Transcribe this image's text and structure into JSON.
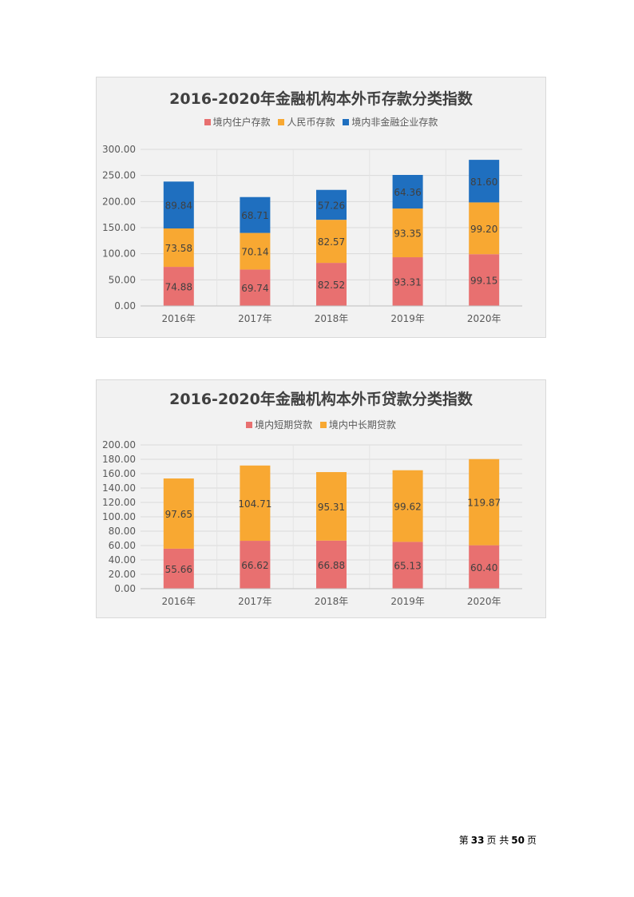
{
  "chart_data": [
    {
      "type": "bar",
      "stacked": true,
      "title": "2016-2020年金融机构本外币存款分类指数",
      "categories": [
        "2016年",
        "2017年",
        "2018年",
        "2019年",
        "2020年"
      ],
      "series": [
        {
          "name": "境内住户存款",
          "color": "#e87070",
          "values": [
            74.88,
            69.74,
            82.52,
            93.31,
            99.15
          ],
          "labels": [
            "74.88",
            "69.74",
            "82.52",
            "93.31",
            "99.15"
          ]
        },
        {
          "name": "人民币存款",
          "color": "#f8a832",
          "values": [
            73.58,
            70.14,
            82.57,
            93.35,
            99.2
          ],
          "labels": [
            "73.58",
            "70.14",
            "82.57",
            "93.35",
            "99.20"
          ]
        },
        {
          "name": "境内非金融企业存款",
          "color": "#1f6fbf",
          "values": [
            89.84,
            68.71,
            57.26,
            64.36,
            81.6
          ],
          "labels": [
            "89.84",
            "68.71",
            "57.26",
            "64.36",
            "81.60"
          ]
        }
      ],
      "ylim": [
        0,
        300
      ],
      "yticks": [
        "0.00",
        "50.00",
        "100.00",
        "150.00",
        "200.00",
        "250.00",
        "300.00"
      ],
      "grid": true,
      "legend_position": "top"
    },
    {
      "type": "bar",
      "stacked": true,
      "title": "2016-2020年金融机构本外币贷款分类指数",
      "categories": [
        "2016年",
        "2017年",
        "2018年",
        "2019年",
        "2020年"
      ],
      "series": [
        {
          "name": "境内短期贷款",
          "color": "#e87070",
          "values": [
            55.66,
            66.62,
            66.88,
            65.13,
            60.4
          ],
          "labels": [
            "55.66",
            "66.62",
            "66.88",
            "65.13",
            "60.40"
          ]
        },
        {
          "name": "境内中长期贷款",
          "color": "#f8a832",
          "values": [
            97.65,
            104.71,
            95.31,
            99.62,
            119.87
          ],
          "labels": [
            "97.65",
            "104.71",
            "95.31",
            "99.62",
            "119.87"
          ]
        }
      ],
      "ylim": [
        0,
        200
      ],
      "yticks": [
        "0.00",
        "20.00",
        "40.00",
        "60.00",
        "80.00",
        "100.00",
        "120.00",
        "140.00",
        "160.00",
        "180.00",
        "200.00"
      ],
      "grid": true,
      "legend_position": "top"
    }
  ],
  "footer": {
    "prefix": "第",
    "page": "33",
    "middle": "页 共",
    "total": "50",
    "suffix": "页"
  }
}
